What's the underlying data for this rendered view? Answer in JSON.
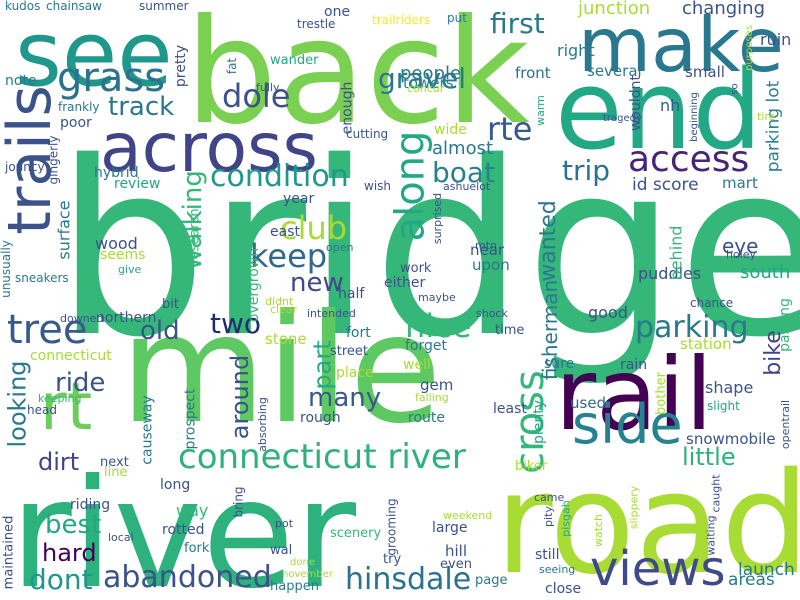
{
  "palette": {
    "c1": "#7ad151",
    "c2": "#22a884",
    "c3": "#2a788e",
    "c4": "#414487",
    "c5": "#440154",
    "c6": "#5ec962",
    "c7": "#38598c",
    "c8": "#fde725",
    "c9": "#1f988b",
    "c10": "#3b528b",
    "c11": "#35b779",
    "c12": "#a8db34",
    "c13": "#482475",
    "c14": "#26828e",
    "c15": "#2db27d"
  },
  "words": [
    {
      "text": "bridge",
      "color": "#35b779"
    },
    {
      "text": "mile",
      "color": "#5ec962"
    },
    {
      "text": "river",
      "color": "#2db27d"
    },
    {
      "text": "back",
      "color": "#7ad151"
    },
    {
      "text": "road",
      "color": "#a8db34"
    },
    {
      "text": "rail",
      "color": "#440154"
    },
    {
      "text": "end",
      "color": "#22a884"
    },
    {
      "text": "see",
      "color": "#1f988b"
    },
    {
      "text": "make",
      "color": "#2a788e"
    },
    {
      "text": "across",
      "color": "#414487"
    },
    {
      "text": "trails",
      "color": "#3b528b"
    },
    {
      "text": "rt",
      "color": "#6ccd5a"
    },
    {
      "text": "side",
      "color": "#26828e"
    },
    {
      "text": "views",
      "color": "#3e4a89"
    },
    {
      "text": "connecticut river",
      "color": "#2db27d"
    },
    {
      "text": "tree",
      "color": "#38598c"
    },
    {
      "text": "grass",
      "color": "#2c728e"
    },
    {
      "text": "along",
      "color": "#22a884"
    },
    {
      "text": "access",
      "color": "#482475"
    },
    {
      "text": "cross",
      "color": "#35b779"
    },
    {
      "text": "abandoned",
      "color": "#3b528b"
    },
    {
      "text": "hinsdale",
      "color": "#2c728e"
    },
    {
      "text": "condition",
      "color": "#1f988b"
    },
    {
      "text": "nice",
      "color": "#35b779"
    },
    {
      "text": "parking",
      "color": "#2a788e"
    },
    {
      "text": "keep",
      "color": "#31688e"
    },
    {
      "text": "club",
      "color": "#a8db34"
    },
    {
      "text": "dole",
      "color": "#3b528b"
    },
    {
      "text": "gravel",
      "color": "#2a788e"
    },
    {
      "text": "first",
      "color": "#2a788e"
    },
    {
      "text": "rte",
      "color": "#38598c"
    },
    {
      "text": "boat",
      "color": "#26828e"
    },
    {
      "text": "trip",
      "color": "#2c728e"
    },
    {
      "text": "track",
      "color": "#2a788e"
    },
    {
      "text": "old",
      "color": "#3b528b"
    },
    {
      "text": "two",
      "color": "#1f2d6e"
    },
    {
      "text": "new",
      "color": "#3e4a89"
    },
    {
      "text": "walking",
      "color": "#35b779"
    },
    {
      "text": "around",
      "color": "#3b528b"
    },
    {
      "text": "many",
      "color": "#38598c"
    },
    {
      "text": "part",
      "color": "#22a884"
    },
    {
      "text": "ride",
      "color": "#3b528b"
    },
    {
      "text": "looking",
      "color": "#2a788e"
    },
    {
      "text": "dirt",
      "color": "#414487"
    },
    {
      "text": "best",
      "color": "#22a884"
    },
    {
      "text": "hard",
      "color": "#440154"
    },
    {
      "text": "dont",
      "color": "#1f988b"
    },
    {
      "text": "little",
      "color": "#2db27d"
    },
    {
      "text": "bike",
      "color": "#414487"
    },
    {
      "text": "wanted",
      "color": "#2a788e"
    },
    {
      "text": "fisherman",
      "color": "#2a788e"
    },
    {
      "text": "people",
      "color": "#2a788e"
    },
    {
      "text": "almost",
      "color": "#2a788e"
    },
    {
      "text": "junction",
      "color": "#a8db34"
    },
    {
      "text": "changing",
      "color": "#3b528b"
    },
    {
      "text": "towers",
      "color": "#26828e"
    },
    {
      "text": "right",
      "color": "#2a788e"
    },
    {
      "text": "front",
      "color": "#2c728e"
    },
    {
      "text": "several",
      "color": "#2a788e"
    },
    {
      "text": "small",
      "color": "#3b528b"
    },
    {
      "text": "nh",
      "color": "#38598c"
    },
    {
      "text": "ruin",
      "color": "#3b528b"
    },
    {
      "text": "parking lot",
      "color": "#26828e"
    },
    {
      "text": "id score",
      "color": "#3b528b"
    },
    {
      "text": "mart",
      "color": "#2a788e"
    },
    {
      "text": "eye",
      "color": "#3b528b"
    },
    {
      "text": "south",
      "color": "#22a884"
    },
    {
      "text": "puddles",
      "color": "#3b528b"
    },
    {
      "text": "behind",
      "color": "#35b779"
    },
    {
      "text": "good",
      "color": "#3b528b"
    },
    {
      "text": "station",
      "color": "#a8db34"
    },
    {
      "text": "passing",
      "color": "#35b779"
    },
    {
      "text": "shape",
      "color": "#3b528b"
    },
    {
      "text": "used",
      "color": "#31688e"
    },
    {
      "text": "bother",
      "color": "#a8db34"
    },
    {
      "text": "snowmobile",
      "color": "#3b528b"
    },
    {
      "text": "launch",
      "color": "#2a788e"
    },
    {
      "text": "areas",
      "color": "#2a788e"
    },
    {
      "text": "wood",
      "color": "#3b528b"
    },
    {
      "text": "seems",
      "color": "#a8db34"
    },
    {
      "text": "surface",
      "color": "#2a788e"
    },
    {
      "text": "hybrid",
      "color": "#2a788e"
    },
    {
      "text": "review",
      "color": "#22a884"
    },
    {
      "text": "poor",
      "color": "#3b528b"
    },
    {
      "text": "note",
      "color": "#2a788e"
    },
    {
      "text": "frankly",
      "color": "#2a788e"
    },
    {
      "text": "kudos",
      "color": "#2a788e"
    },
    {
      "text": "chainsaw",
      "color": "#2a788e"
    },
    {
      "text": "summer",
      "color": "#3b528b"
    },
    {
      "text": "pretty",
      "color": "#3b528b"
    },
    {
      "text": "fully",
      "color": "#3b528b"
    },
    {
      "text": "trestle",
      "color": "#3b528b"
    },
    {
      "text": "one",
      "color": "#3b528b"
    },
    {
      "text": "trailriders",
      "color": "#fde725"
    },
    {
      "text": "put",
      "color": "#2a788e"
    },
    {
      "text": "wander",
      "color": "#22a884"
    },
    {
      "text": "fat",
      "color": "#2a788e"
    },
    {
      "text": "enough",
      "color": "#3b528b"
    },
    {
      "text": "concur",
      "color": "#a8db34"
    },
    {
      "text": "cutting",
      "color": "#3b528b"
    },
    {
      "text": "wide",
      "color": "#a8db34"
    },
    {
      "text": "warm",
      "color": "#22a884"
    },
    {
      "text": "wish",
      "color": "#3b528b"
    },
    {
      "text": "ashuelot",
      "color": "#3b528b"
    },
    {
      "text": "surprised",
      "color": "#3b528b"
    },
    {
      "text": "year",
      "color": "#3b528b"
    },
    {
      "text": "east",
      "color": "#3b528b"
    },
    {
      "text": "research",
      "color": "#35b779"
    },
    {
      "text": "overgrown",
      "color": "#35b779"
    },
    {
      "text": "jouncy",
      "color": "#3b528b"
    },
    {
      "text": "gingerly",
      "color": "#3b528b"
    },
    {
      "text": "unusually",
      "color": "#2a788e"
    },
    {
      "text": "sneakers",
      "color": "#2a788e"
    },
    {
      "text": "give",
      "color": "#22a884"
    },
    {
      "text": "half",
      "color": "#3b528b"
    },
    {
      "text": "either",
      "color": "#3b528b"
    },
    {
      "text": "work",
      "color": "#3b528b"
    },
    {
      "text": "near",
      "color": "#3b528b"
    },
    {
      "text": "upon",
      "color": "#2a788e"
    },
    {
      "text": "open",
      "color": "#2a788e"
    },
    {
      "text": "mtn",
      "color": "#3b528b"
    },
    {
      "text": "maybe",
      "color": "#3b528b"
    },
    {
      "text": "didnt",
      "color": "#a8db34"
    },
    {
      "text": "clear",
      "color": "#a8db34"
    },
    {
      "text": "intended",
      "color": "#3b528b"
    },
    {
      "text": "shock",
      "color": "#3b528b"
    },
    {
      "text": "time",
      "color": "#3b528b"
    },
    {
      "text": "northern",
      "color": "#3b528b"
    },
    {
      "text": "downed",
      "color": "#3b528b"
    },
    {
      "text": "bit",
      "color": "#3b528b"
    },
    {
      "text": "fort",
      "color": "#2a788e"
    },
    {
      "text": "forget",
      "color": "#2a788e"
    },
    {
      "text": "stone",
      "color": "#a8db34"
    },
    {
      "text": "street",
      "color": "#3b528b"
    },
    {
      "text": "connecticut",
      "color": "#a8db34"
    },
    {
      "text": "place",
      "color": "#a8db34"
    },
    {
      "text": "well",
      "color": "#a8db34"
    },
    {
      "text": "gem",
      "color": "#3b528b"
    },
    {
      "text": "route",
      "color": "#2a788e"
    },
    {
      "text": "rough",
      "color": "#3b528b"
    },
    {
      "text": "prospect",
      "color": "#2a788e"
    },
    {
      "text": "causeway",
      "color": "#2a788e"
    },
    {
      "text": "absorbing",
      "color": "#3b528b"
    },
    {
      "text": "falling",
      "color": "#a8db34"
    },
    {
      "text": "keeping",
      "color": "#35b779"
    },
    {
      "text": "head",
      "color": "#3b528b"
    },
    {
      "text": "least",
      "color": "#3b528b"
    },
    {
      "text": "plenty",
      "color": "#22a884"
    },
    {
      "text": "sure",
      "color": "#2a788e"
    },
    {
      "text": "rain",
      "color": "#3b528b"
    },
    {
      "text": "slight",
      "color": "#22a884"
    },
    {
      "text": "opentrail",
      "color": "#3b528b"
    },
    {
      "text": "chance",
      "color": "#3b528b"
    },
    {
      "text": "holey",
      "color": "#3b528b"
    },
    {
      "text": "next",
      "color": "#3b528b"
    },
    {
      "text": "line",
      "color": "#a8db34"
    },
    {
      "text": "long",
      "color": "#3b528b"
    },
    {
      "text": "riding",
      "color": "#3b528b"
    },
    {
      "text": "way",
      "color": "#35b779"
    },
    {
      "text": "rotted",
      "color": "#3b528b"
    },
    {
      "text": "fork",
      "color": "#2a788e"
    },
    {
      "text": "bring",
      "color": "#3b528b"
    },
    {
      "text": "wal",
      "color": "#3b528b"
    },
    {
      "text": "done",
      "color": "#a8db34"
    },
    {
      "text": "november",
      "color": "#a8db34"
    },
    {
      "text": "happen",
      "color": "#2a788e"
    },
    {
      "text": "pot",
      "color": "#3b528b"
    },
    {
      "text": "scenery",
      "color": "#35b779"
    },
    {
      "text": "grooming",
      "color": "#3b528b"
    },
    {
      "text": "weekend",
      "color": "#a8db34"
    },
    {
      "text": "even",
      "color": "#3b528b"
    },
    {
      "text": "try",
      "color": "#3b528b"
    },
    {
      "text": "page",
      "color": "#2a788e"
    },
    {
      "text": "large",
      "color": "#3b528b"
    },
    {
      "text": "hill",
      "color": "#3b528b"
    },
    {
      "text": "biker",
      "color": "#a8db34"
    },
    {
      "text": "came",
      "color": "#3b528b"
    },
    {
      "text": "pity",
      "color": "#3b528b"
    },
    {
      "text": "pisgah",
      "color": "#22a884"
    },
    {
      "text": "seeing",
      "color": "#2a788e"
    },
    {
      "text": "still",
      "color": "#3b528b"
    },
    {
      "text": "close",
      "color": "#3b528b"
    },
    {
      "text": "watch",
      "color": "#a8db34"
    },
    {
      "text": "slippery",
      "color": "#a8db34"
    },
    {
      "text": "waiting",
      "color": "#3b528b"
    },
    {
      "text": "caught",
      "color": "#3b528b"
    },
    {
      "text": "maintained",
      "color": "#3b528b"
    },
    {
      "text": "local",
      "color": "#3b528b"
    },
    {
      "text": "tragedy",
      "color": "#3b528b"
    },
    {
      "text": "wouldnt",
      "color": "#3b528b"
    },
    {
      "text": "purposes",
      "color": "#a8db34"
    },
    {
      "text": "so",
      "color": "#3b528b"
    },
    {
      "text": "beginning",
      "color": "#3b528b"
    },
    {
      "text": "tire",
      "color": "#a8db34"
    }
  ]
}
